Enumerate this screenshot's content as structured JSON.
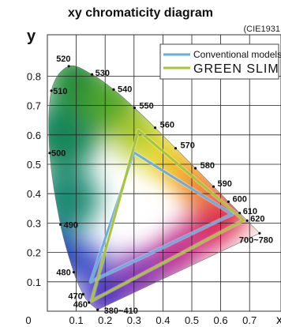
{
  "chart_data": {
    "type": "scatter",
    "title": "xy chromaticity diagram",
    "subtitle": "(CIE1931",
    "xlabel": "x",
    "ylabel": "y",
    "xlim": [
      0,
      0.75
    ],
    "ylim": [
      0,
      0.9
    ],
    "x_ticks": [
      "0",
      "0.1",
      "0.2",
      "0.3",
      "0.4",
      "0.5",
      "0.6",
      "0.7"
    ],
    "y_ticks": [
      "0.1",
      "0.2",
      "0.3",
      "0.4",
      "0.5",
      "0.6",
      "0.7",
      "0.8"
    ],
    "grid": true,
    "legend_position": "top-right",
    "spectral_locus": [
      {
        "label": "380~410",
        "x": 0.1741,
        "y": 0.005
      },
      {
        "label": "460",
        "x": 0.144,
        "y": 0.0297
      },
      {
        "label": "470",
        "x": 0.1241,
        "y": 0.0578
      },
      {
        "label": "480",
        "x": 0.0913,
        "y": 0.1327
      },
      {
        "label": "490",
        "x": 0.0454,
        "y": 0.295
      },
      {
        "label": "500",
        "x": 0.0082,
        "y": 0.5384
      },
      {
        "label": "510",
        "x": 0.0139,
        "y": 0.7502
      },
      {
        "label": "520",
        "x": 0.0743,
        "y": 0.8338
      },
      {
        "label": "530",
        "x": 0.1547,
        "y": 0.8059
      },
      {
        "label": "540",
        "x": 0.2296,
        "y": 0.7543
      },
      {
        "label": "550",
        "x": 0.3016,
        "y": 0.6923
      },
      {
        "label": "560",
        "x": 0.3731,
        "y": 0.6245
      },
      {
        "label": "570",
        "x": 0.4441,
        "y": 0.5547
      },
      {
        "label": "580",
        "x": 0.5125,
        "y": 0.4866
      },
      {
        "label": "590",
        "x": 0.5752,
        "y": 0.4242
      },
      {
        "label": "600",
        "x": 0.627,
        "y": 0.3725
      },
      {
        "label": "610",
        "x": 0.6658,
        "y": 0.334
      },
      {
        "label": "620",
        "x": 0.6915,
        "y": 0.3083
      },
      {
        "label": "700~780",
        "x": 0.7347,
        "y": 0.2653
      }
    ],
    "series": [
      {
        "name": "Conventional models",
        "color": "#6aaee0",
        "points": [
          {
            "x": 0.64,
            "y": 0.33
          },
          {
            "x": 0.3,
            "y": 0.54
          },
          {
            "x": 0.15,
            "y": 0.1
          }
        ]
      },
      {
        "name": "GREEN SLIM",
        "color": "#a8c43a",
        "points": [
          {
            "x": 0.68,
            "y": 0.31
          },
          {
            "x": 0.315,
            "y": 0.615
          },
          {
            "x": 0.153,
            "y": 0.035
          }
        ]
      }
    ]
  }
}
